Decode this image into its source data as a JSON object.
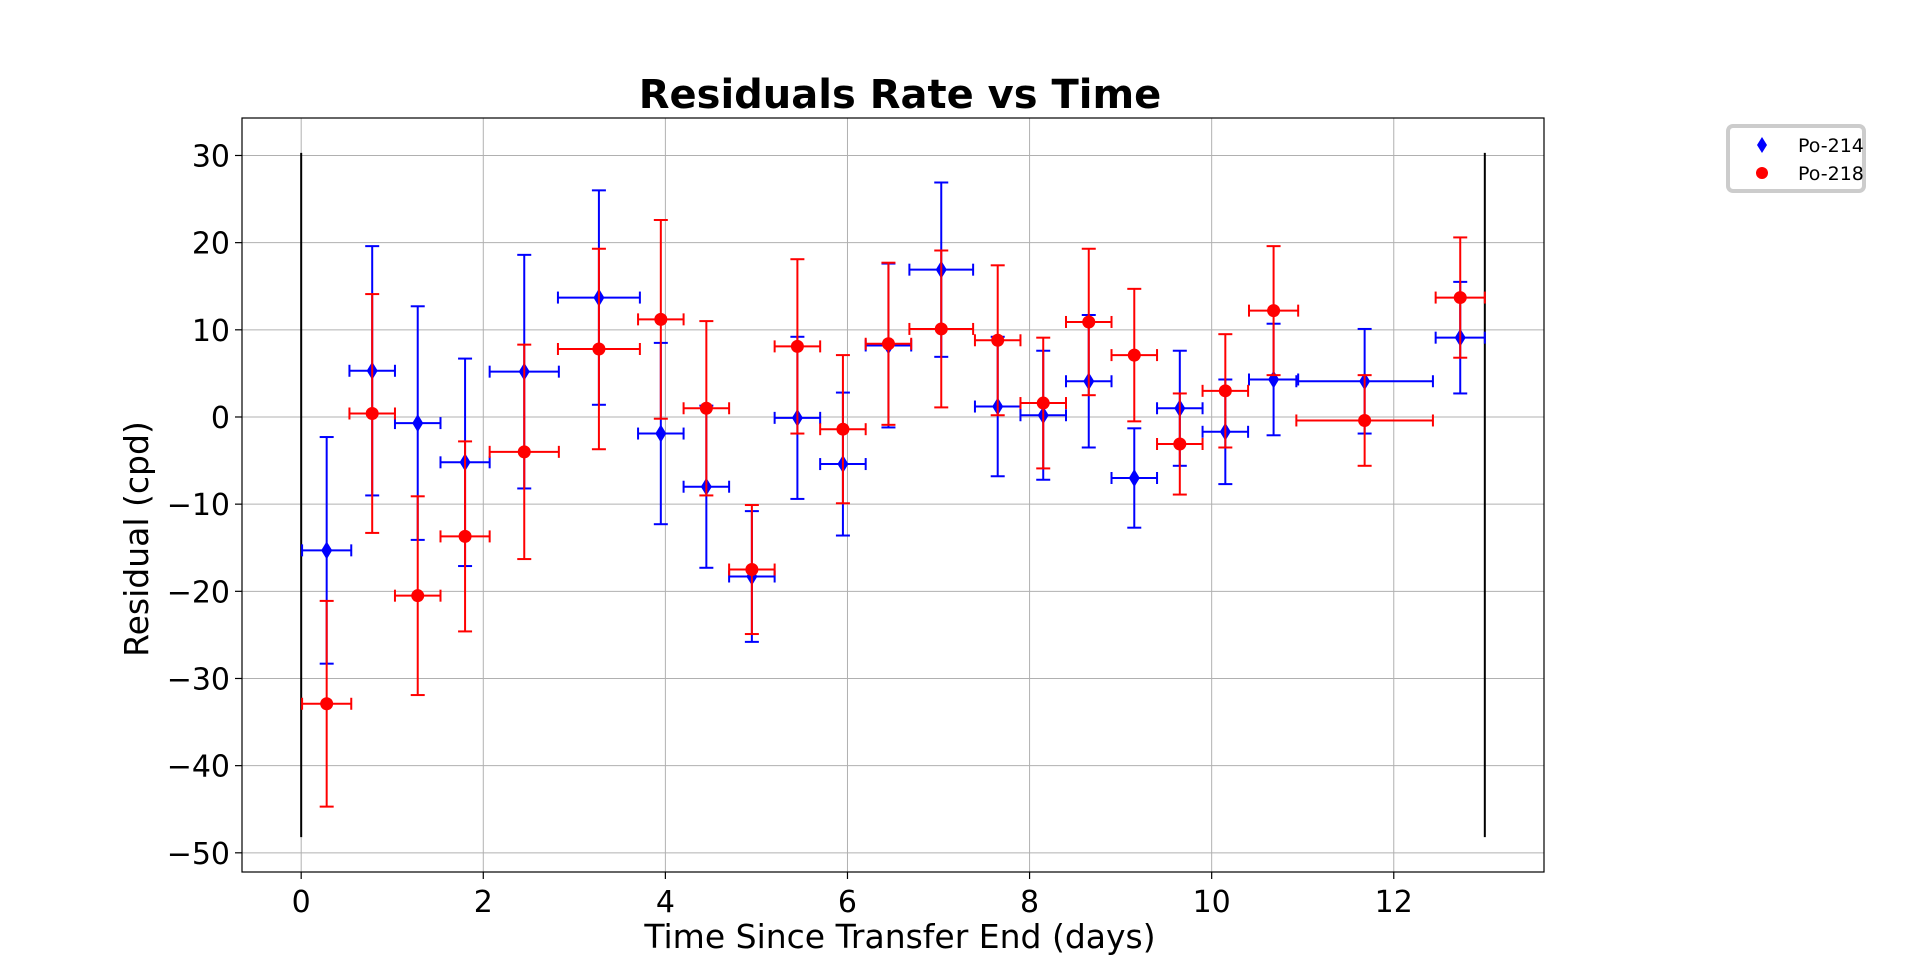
{
  "chart_data": {
    "type": "scatter",
    "title": "Residuals Rate vs Time",
    "xlabel": "Time Since Transfer End (days)",
    "ylabel": "Residual (cpd)",
    "xlim": [
      -0.65,
      13.65
    ],
    "ylim": [
      -52.2,
      34.3
    ],
    "xticks": [
      0,
      2,
      4,
      6,
      8,
      10,
      12
    ],
    "yticks": [
      -50,
      -40,
      -30,
      -20,
      -10,
      0,
      10,
      20,
      30
    ],
    "grid": true,
    "legend_position": "outside-top-right",
    "boundary_lines_x": [
      0.0,
      13.0
    ],
    "boundary_lines_y": [
      -48.2,
      30.3
    ],
    "series": [
      {
        "name": "Po-214",
        "color": "#0000ff",
        "marker": "diamond",
        "points": [
          {
            "x": 0.28,
            "y": -15.3,
            "xerr": 0.27,
            "yerr": 13.0
          },
          {
            "x": 0.78,
            "y": 5.3,
            "xerr": 0.25,
            "yerr": 14.3
          },
          {
            "x": 1.28,
            "y": -0.7,
            "xerr": 0.25,
            "yerr": 13.4
          },
          {
            "x": 1.8,
            "y": -5.2,
            "xerr": 0.27,
            "yerr": 11.9
          },
          {
            "x": 2.45,
            "y": 5.2,
            "xerr": 0.38,
            "yerr": 13.4
          },
          {
            "x": 3.27,
            "y": 13.7,
            "xerr": 0.45,
            "yerr": 12.3
          },
          {
            "x": 3.95,
            "y": -1.9,
            "xerr": 0.25,
            "yerr": 10.4
          },
          {
            "x": 4.45,
            "y": -8.0,
            "xerr": 0.25,
            "yerr": 9.3
          },
          {
            "x": 4.95,
            "y": -18.3,
            "xerr": 0.25,
            "yerr": 7.5
          },
          {
            "x": 5.45,
            "y": -0.1,
            "xerr": 0.25,
            "yerr": 9.3
          },
          {
            "x": 5.95,
            "y": -5.4,
            "xerr": 0.25,
            "yerr": 8.2
          },
          {
            "x": 6.45,
            "y": 8.2,
            "xerr": 0.25,
            "yerr": 9.4
          },
          {
            "x": 7.03,
            "y": 16.9,
            "xerr": 0.35,
            "yerr": 10.0
          },
          {
            "x": 7.65,
            "y": 1.2,
            "xerr": 0.25,
            "yerr": 8.0
          },
          {
            "x": 8.15,
            "y": 0.2,
            "xerr": 0.25,
            "yerr": 7.4
          },
          {
            "x": 8.65,
            "y": 4.1,
            "xerr": 0.25,
            "yerr": 7.6
          },
          {
            "x": 9.15,
            "y": -7.0,
            "xerr": 0.25,
            "yerr": 5.7
          },
          {
            "x": 9.65,
            "y": 1.0,
            "xerr": 0.25,
            "yerr": 6.6
          },
          {
            "x": 10.15,
            "y": -1.7,
            "xerr": 0.25,
            "yerr": 6.0
          },
          {
            "x": 10.68,
            "y": 4.3,
            "xerr": 0.27,
            "yerr": 6.4
          },
          {
            "x": 11.68,
            "y": 4.1,
            "xerr": 0.75,
            "yerr": 6.0
          },
          {
            "x": 12.73,
            "y": 9.1,
            "xerr": 0.27,
            "yerr": 6.4
          }
        ]
      },
      {
        "name": "Po-218",
        "color": "#ff0000",
        "marker": "circle",
        "points": [
          {
            "x": 0.28,
            "y": -32.9,
            "xerr": 0.27,
            "yerr": 11.8
          },
          {
            "x": 0.78,
            "y": 0.4,
            "xerr": 0.25,
            "yerr": 13.7
          },
          {
            "x": 1.28,
            "y": -20.5,
            "xerr": 0.25,
            "yerr": 11.4
          },
          {
            "x": 1.8,
            "y": -13.7,
            "xerr": 0.27,
            "yerr": 10.9
          },
          {
            "x": 2.45,
            "y": -4.0,
            "xerr": 0.38,
            "yerr": 12.3
          },
          {
            "x": 3.27,
            "y": 7.8,
            "xerr": 0.45,
            "yerr": 11.5
          },
          {
            "x": 3.95,
            "y": 11.2,
            "xerr": 0.25,
            "yerr": 11.4
          },
          {
            "x": 4.45,
            "y": 1.0,
            "xerr": 0.25,
            "yerr": 10.0
          },
          {
            "x": 4.95,
            "y": -17.5,
            "xerr": 0.25,
            "yerr": 7.4
          },
          {
            "x": 5.45,
            "y": 8.1,
            "xerr": 0.25,
            "yerr": 10.0
          },
          {
            "x": 5.95,
            "y": -1.4,
            "xerr": 0.25,
            "yerr": 8.5
          },
          {
            "x": 6.45,
            "y": 8.4,
            "xerr": 0.25,
            "yerr": 9.3
          },
          {
            "x": 7.03,
            "y": 10.1,
            "xerr": 0.35,
            "yerr": 9.0
          },
          {
            "x": 7.65,
            "y": 8.8,
            "xerr": 0.25,
            "yerr": 8.6
          },
          {
            "x": 8.15,
            "y": 1.6,
            "xerr": 0.25,
            "yerr": 7.5
          },
          {
            "x": 8.65,
            "y": 10.9,
            "xerr": 0.25,
            "yerr": 8.4
          },
          {
            "x": 9.15,
            "y": 7.1,
            "xerr": 0.25,
            "yerr": 7.6
          },
          {
            "x": 9.65,
            "y": -3.1,
            "xerr": 0.25,
            "yerr": 5.8
          },
          {
            "x": 10.15,
            "y": 3.0,
            "xerr": 0.25,
            "yerr": 6.5
          },
          {
            "x": 10.68,
            "y": 12.2,
            "xerr": 0.27,
            "yerr": 7.4
          },
          {
            "x": 11.68,
            "y": -0.4,
            "xerr": 0.75,
            "yerr": 5.2
          },
          {
            "x": 12.73,
            "y": 13.7,
            "xerr": 0.27,
            "yerr": 6.9
          }
        ]
      }
    ]
  }
}
